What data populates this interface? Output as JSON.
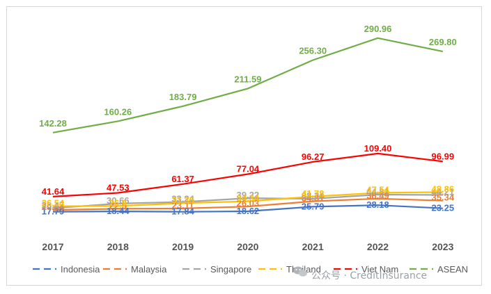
{
  "chart_data": {
    "type": "line",
    "title": "",
    "xlabel": "",
    "ylabel": "",
    "categories": [
      "2017",
      "2018",
      "2019",
      "2020",
      "2021",
      "2022",
      "2023"
    ],
    "ylim": [
      0,
      300
    ],
    "grid": false,
    "legend_position": "bottom",
    "series": [
      {
        "name": "Indonesia",
        "color": "#4472c4",
        "values": [
          17.79,
          18.44,
          17.84,
          18.62,
          25.79,
          28.18,
          23.25
        ],
        "labels": [
          "17.79",
          "18.44",
          "17.84",
          "18.62",
          "25.79",
          "28.18",
          "23.25"
        ]
      },
      {
        "name": "Malaysia",
        "color": "#ed7d31",
        "values": [
          20.64,
          22.5,
          23.11,
          26.03,
          34.31,
          38.49,
          35.34
        ],
        "labels": [
          "20.64",
          "22.5",
          "23.11",
          "26.03",
          "34.31",
          "38.49",
          "35.34"
        ]
      },
      {
        "name": "Singapore",
        "color": "#a5a5a5",
        "values": [
          23.47,
          30.66,
          33.24,
          39.22,
          38.24,
          44.81,
          44.21
        ],
        "labels": [
          "23.47",
          "30.66",
          "33.24",
          "39.22",
          "38.24",
          "44.81",
          "44.21"
        ]
      },
      {
        "name": "Thailand",
        "color": "#ffc000",
        "values": [
          26.54,
          26.9,
          31.35,
          34.34,
          41.78,
          47.54,
          48.86
        ],
        "labels": [
          "26.54",
          "26.9",
          "31.35",
          "34.34",
          "41.78",
          "47.54",
          "48.86"
        ]
      },
      {
        "name": "Viet Nam",
        "color": "#ff0000",
        "values": [
          41.64,
          47.53,
          61.37,
          77.04,
          96.27,
          109.4,
          96.99
        ],
        "labels": [
          "41.64",
          "47.53",
          "61.37",
          "77.04",
          "96.27",
          "109.40",
          "96.99"
        ]
      },
      {
        "name": "ASEAN",
        "color": "#70ad47",
        "values": [
          142.28,
          160.26,
          183.79,
          211.59,
          256.3,
          290.96,
          269.8
        ],
        "labels": [
          "142.28",
          "160.26",
          "183.79",
          "211.59",
          "256.30",
          "290.96",
          "269.80"
        ]
      }
    ]
  },
  "watermark": {
    "text": "公众号 · CreditInsurance",
    "icon": "wechat-icon"
  }
}
